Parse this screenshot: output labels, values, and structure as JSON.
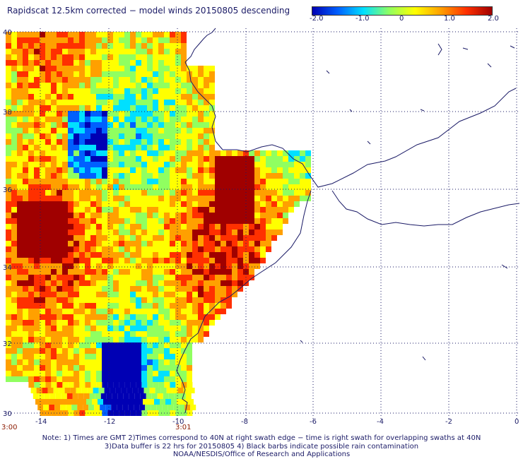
{
  "title": "Rapidscat 12.5km corrected − model winds 20150805 descending",
  "colorbar": {
    "ticks": [
      "-2.0",
      "-1.0",
      "0",
      "1.0",
      "2.0"
    ],
    "colors": [
      "#0000b4",
      "#0060ff",
      "#00e0ff",
      "#90ff60",
      "#ffff00",
      "#ffa000",
      "#ff3000",
      "#a00000"
    ]
  },
  "axes": {
    "x_ticks": [
      "-14",
      "-12",
      "-10",
      "-8",
      "-6",
      "-4",
      "-2",
      "0"
    ],
    "y_ticks": [
      "40",
      "38",
      "36",
      "34",
      "32",
      "30"
    ]
  },
  "times": {
    "left": "3:00",
    "right": "3:01"
  },
  "notes": {
    "line1": "Note: 1) Times are GMT 2)Times correspond to 40N at right swath edge − time is right swath for overlapping swaths at 40N",
    "line2": "3)Data buffer is 22 hrs for 20150805 4) Black barbs indicate possible rain contamination",
    "line3": "NOAA/NESDIS/Office of Research and Applications"
  },
  "colors": {
    "coast": "#1a1a66",
    "grid": "#1a1a66"
  }
}
